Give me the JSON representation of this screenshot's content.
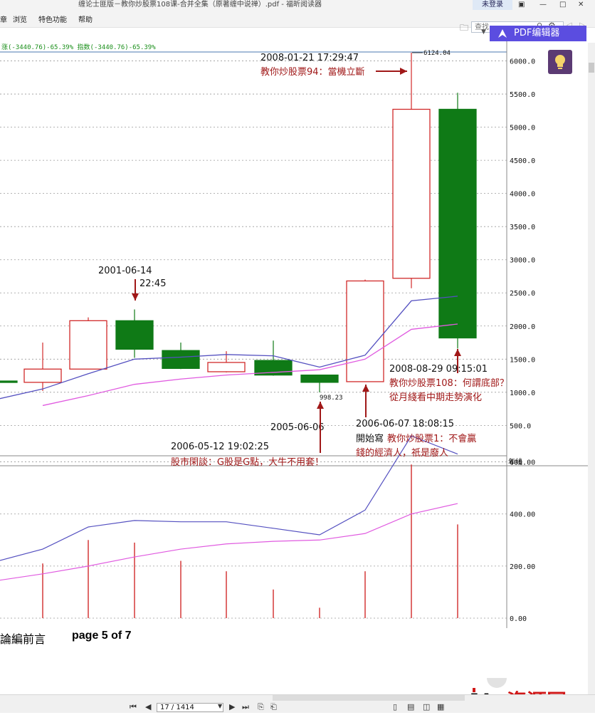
{
  "window": {
    "title": "缠论士匪版－教你炒股票108课-合并全集（原著缠中说禅）.pdf - 福昕阅读器",
    "login_label": "未登录",
    "minimize": "—",
    "maximize": "□",
    "close": "✕"
  },
  "menu": [
    "浏览",
    "特色功能",
    "帮助"
  ],
  "menu_first_partial": "章",
  "search": {
    "placeholder": "查找"
  },
  "pdf_editor_label": "PDF编辑器",
  "chart_data": {
    "type": "candlestick",
    "header_label": "涨(-3440.76)-65.39% 指数(-3440.76)-65.39%",
    "period_label": "年线",
    "price_axis": {
      "ticks": [
        500.0,
        1000.0,
        1500.0,
        2000.0,
        2500.0,
        3000.0,
        3500.0,
        4000.0,
        4500.0,
        5000.0,
        5500.0,
        6000.0
      ],
      "range": [
        170,
        6200
      ]
    },
    "candles": [
      {
        "open": 1150,
        "close": 1170,
        "high": 1170,
        "low": 1150,
        "color": "down"
      },
      {
        "open": 1150,
        "close": 1350,
        "high": 1750,
        "low": 1020,
        "color": "up"
      },
      {
        "open": 1350,
        "close": 2080,
        "high": 2130,
        "low": 1350,
        "color": "up"
      },
      {
        "open": 2080,
        "close": 1650,
        "high": 2250,
        "low": 1520,
        "color": "down"
      },
      {
        "open": 1630,
        "close": 1360,
        "high": 1750,
        "low": 1350,
        "color": "down"
      },
      {
        "open": 1310,
        "close": 1450,
        "high": 1620,
        "low": 1300,
        "color": "up"
      },
      {
        "open": 1480,
        "close": 1260,
        "high": 1780,
        "low": 1250,
        "color": "down"
      },
      {
        "open": 1260,
        "close": 1150,
        "high": 1250,
        "low": 998.23,
        "color": "down"
      },
      {
        "open": 1160,
        "close": 2680,
        "high": 2700,
        "low": 1160,
        "color": "up"
      },
      {
        "open": 2720,
        "close": 5270,
        "high": 6124.04,
        "low": 2570,
        "color": "up"
      },
      {
        "open": 5270,
        "close": 1820,
        "high": 5520,
        "low": 1660,
        "color": "down"
      }
    ],
    "ma_short": [
      900,
      1050,
      1280,
      1500,
      1530,
      1570,
      1550,
      1380,
      1560,
      2380,
      2450
    ],
    "ma_long": [
      null,
      800,
      950,
      1120,
      1200,
      1260,
      1300,
      1340,
      1500,
      1950,
      2030
    ],
    "price_labels": {
      "high": "6124.04",
      "low": "998.23"
    },
    "volume_axis": {
      "ticks": [
        "0.00",
        "200.00",
        "400.00",
        "600.00"
      ],
      "range": [
        0,
        700
      ]
    },
    "volume_bars": [
      null,
      210,
      300,
      290,
      220,
      180,
      110,
      40,
      180,
      590,
      360
    ],
    "volume_ma_short": [
      220,
      265,
      350,
      375,
      370,
      370,
      345,
      320,
      415,
      700,
      630
    ],
    "volume_ma_long": [
      145,
      170,
      200,
      235,
      265,
      285,
      295,
      300,
      325,
      400,
      440
    ],
    "annotations": [
      {
        "date": "2008-01-21 17:29:47",
        "text": "教你炒股票94：當機立斷"
      },
      {
        "date": "2001-06-14",
        "time": "22:45"
      },
      {
        "date": "2005-06-06"
      },
      {
        "date": "2006-05-12 19:02:25",
        "text": "股市閑談：G股是G點，大牛不用套！"
      },
      {
        "date": "2006-06-07 18:08:15",
        "text_black": "開始寫",
        "text": "教你炒股票1：不會贏",
        "text2": "錢的經濟人，祇是廢人"
      },
      {
        "date": "2008-08-29 09:15:01",
        "text": "教你炒股票108：何謂底部？",
        "text2": "從月綫看中期走勢演化"
      }
    ]
  },
  "doc_footer": {
    "left_text": "論編前言",
    "page_text": "page 5 of 7"
  },
  "bottom_bar": {
    "page_field": "17 / 1414"
  },
  "watermark": {
    "brand": "JA",
    "text": "资源网"
  }
}
